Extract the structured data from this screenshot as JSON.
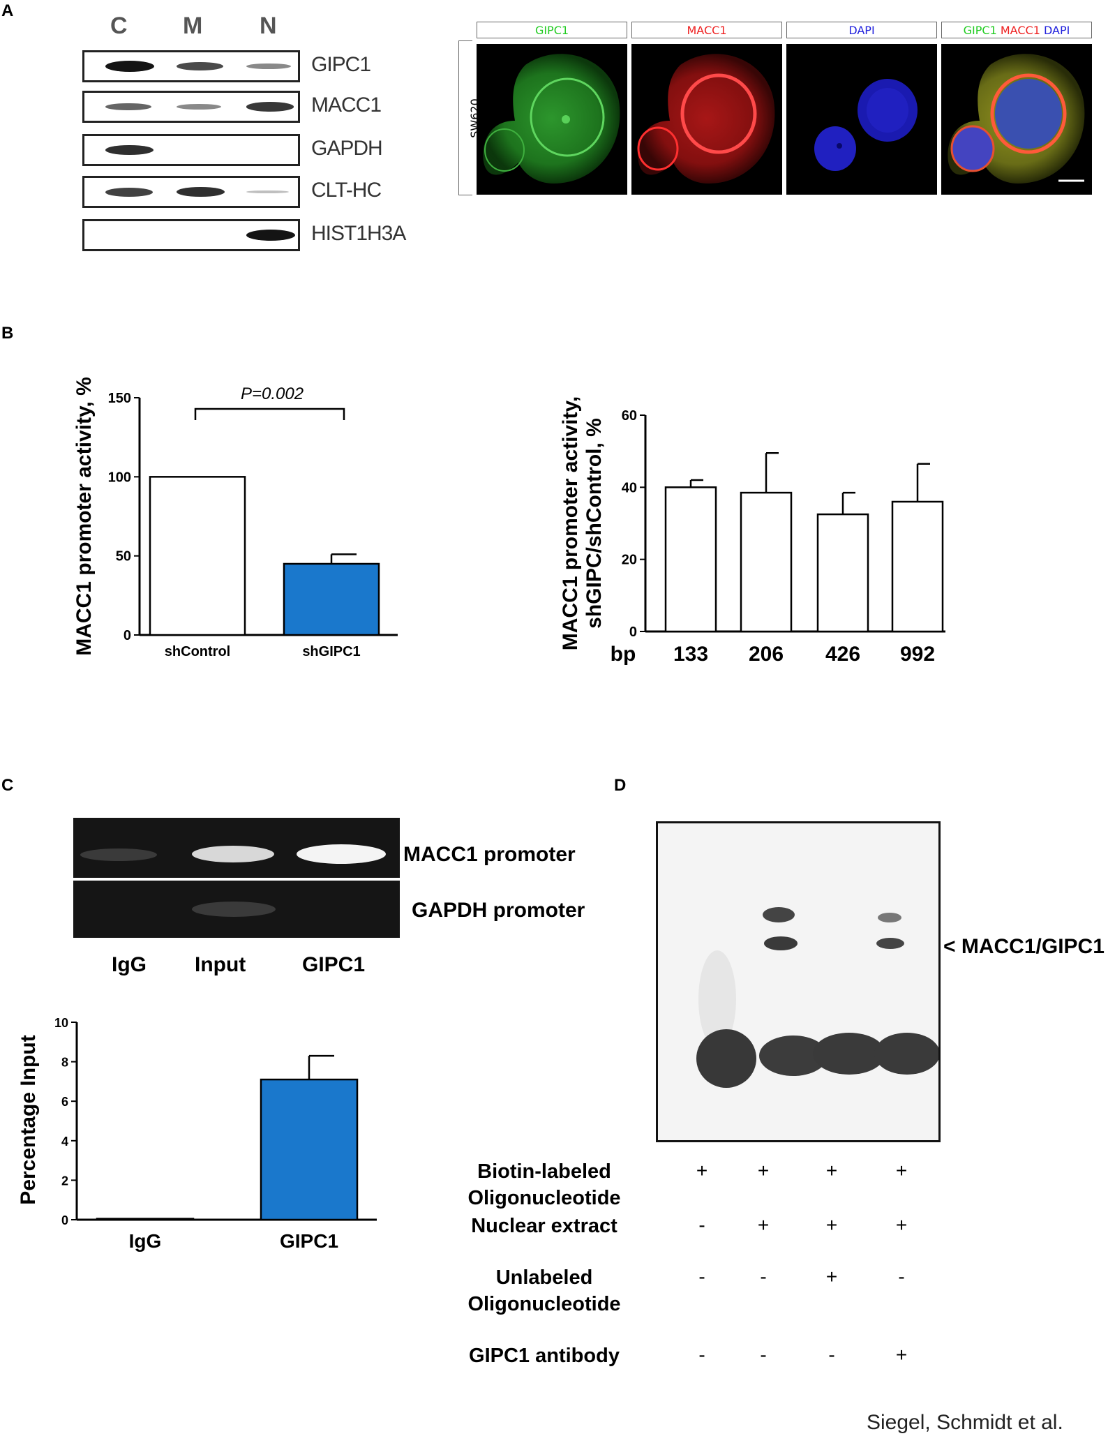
{
  "panels": {
    "a": "A",
    "b": "B",
    "c": "C",
    "d": "D"
  },
  "panel_a": {
    "lanes": [
      "C",
      "M",
      "N"
    ],
    "blots": [
      {
        "label": "GIPC1",
        "levels": [
          1.0,
          0.7,
          0.35
        ]
      },
      {
        "label": "MACC1",
        "levels": [
          0.55,
          0.35,
          0.8
        ]
      },
      {
        "label": "GAPDH",
        "levels": [
          0.85,
          0,
          0
        ]
      },
      {
        "label": "CLT-HC",
        "levels": [
          0.75,
          0.85,
          0.05
        ]
      },
      {
        "label": "HIST1H3A",
        "levels": [
          0,
          0,
          1.0
        ]
      }
    ],
    "microscopy": {
      "cell_line": "SW620",
      "channels": [
        {
          "label": "GIPC1",
          "color": "#22cc22"
        },
        {
          "label": "MACC1",
          "color": "#ee2222"
        },
        {
          "label": "DAPI",
          "color": "#2222dd"
        }
      ],
      "merge_labels": [
        {
          "text": "GIPC1",
          "color": "#22cc22"
        },
        {
          "text": "MACC1",
          "color": "#ee2222"
        },
        {
          "text": "DAPI",
          "color": "#2222dd"
        }
      ]
    }
  },
  "chart_data": [
    {
      "type": "bar",
      "ylabel": "MACC1 promoter activity, %",
      "categories": [
        "shControl",
        "shGIPC1"
      ],
      "values": [
        100,
        45
      ],
      "errors": [
        0,
        6
      ],
      "colors": [
        "#ffffff",
        "#1a78cc"
      ],
      "ylim": [
        0,
        150
      ],
      "yticks": [
        "0",
        "50",
        "100",
        "150"
      ],
      "annotation": "P=0.002"
    },
    {
      "type": "bar",
      "ylabel_lines": [
        "MACC1 promoter activity,",
        "shGIPC/shControl, %"
      ],
      "x_prefix": "bp",
      "categories": [
        "133",
        "206",
        "426",
        "992"
      ],
      "values": [
        40,
        38.5,
        32.5,
        36
      ],
      "errors": [
        2,
        11,
        6,
        10.5
      ],
      "ylim": [
        0,
        60
      ],
      "yticks": [
        "0",
        "20",
        "40",
        "60"
      ]
    },
    {
      "type": "bar",
      "ylabel": "Percentage Input",
      "categories": [
        "IgG",
        "GIPC1"
      ],
      "values": [
        0.05,
        7.1
      ],
      "errors": [
        0,
        1.2
      ],
      "colors": [
        "#ffffff",
        "#1a78cc"
      ],
      "ylim": [
        0,
        10
      ],
      "yticks": [
        "0",
        "2",
        "4",
        "6",
        "8",
        "10"
      ]
    }
  ],
  "panel_c": {
    "gel_labels": [
      "MACC1 promoter",
      "GAPDH promoter"
    ],
    "lanes": [
      "IgG",
      "Input",
      "GIPC1"
    ]
  },
  "panel_d": {
    "arrow_label": "< MACC1/GIPC1",
    "conditions": [
      {
        "label_lines": [
          "Biotin-labeled",
          "Oligonucleotide"
        ],
        "symbols": [
          "+",
          "+",
          "+",
          "+"
        ]
      },
      {
        "label_lines": [
          "Nuclear extract"
        ],
        "symbols": [
          "-",
          "+",
          "+",
          "+"
        ]
      },
      {
        "label_lines": [
          "Unlabeled",
          "Oligonucleotide"
        ],
        "symbols": [
          "-",
          "-",
          "+",
          "-"
        ]
      },
      {
        "label_lines": [
          "GIPC1 antibody"
        ],
        "symbols": [
          "-",
          "-",
          "-",
          "+"
        ]
      }
    ]
  },
  "credit": "Siegel, Schmidt et al."
}
